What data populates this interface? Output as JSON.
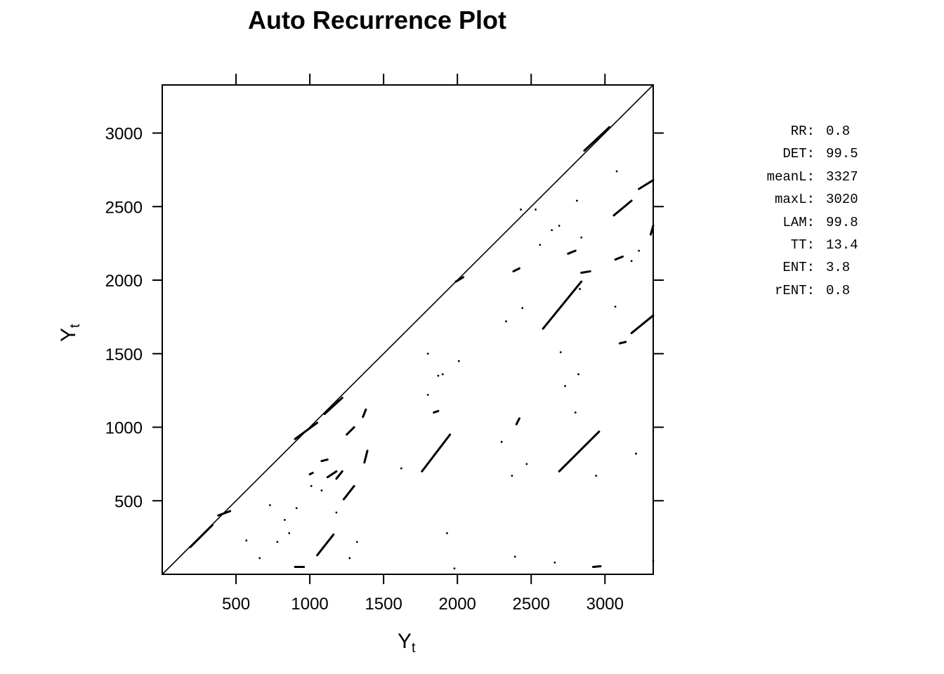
{
  "chart_data": {
    "type": "scatter",
    "title": "Auto Recurrence Plot",
    "xlabel": {
      "main": "Y",
      "sub": "t"
    },
    "ylabel": {
      "main": "Y",
      "sub": "t"
    },
    "xlim": [
      0,
      3327
    ],
    "ylim": [
      0,
      3327
    ],
    "xticks": [
      500,
      1000,
      1500,
      2000,
      2500,
      3000
    ],
    "yticks": [
      500,
      1000,
      1500,
      2000,
      2500,
      3000
    ],
    "grid": false,
    "line_of_identity": {
      "from": [
        0,
        0
      ],
      "to": [
        3327,
        3327
      ]
    },
    "recurrence_segments": [
      {
        "x": [
          190,
          340
        ],
        "y": [
          185,
          335
        ]
      },
      {
        "x": [
          380,
          460
        ],
        "y": [
          400,
          430
        ]
      },
      {
        "x": [
          900,
          1050
        ],
        "y": [
          920,
          1030
        ]
      },
      {
        "x": [
          1100,
          1220
        ],
        "y": [
          1090,
          1200
        ]
      },
      {
        "x": [
          1990,
          2040
        ],
        "y": [
          1990,
          2020
        ]
      },
      {
        "x": [
          2860,
          3030
        ],
        "y": [
          2880,
          3040
        ]
      },
      {
        "x": [
          1760,
          1950
        ],
        "y": [
          700,
          950
        ]
      },
      {
        "x": [
          2690,
          2960
        ],
        "y": [
          700,
          970
        ]
      },
      {
        "x": [
          2580,
          2840
        ],
        "y": [
          1670,
          1990
        ]
      },
      {
        "x": [
          2840,
          2900
        ],
        "y": [
          2050,
          2060
        ]
      },
      {
        "x": [
          3180,
          3327
        ],
        "y": [
          1640,
          1760
        ]
      },
      {
        "x": [
          3100,
          3140
        ],
        "y": [
          1570,
          1580
        ]
      },
      {
        "x": [
          3230,
          3327
        ],
        "y": [
          2620,
          2680
        ]
      },
      {
        "x": [
          3060,
          3180
        ],
        "y": [
          2440,
          2540
        ]
      },
      {
        "x": [
          3310,
          3327
        ],
        "y": [
          2310,
          2370
        ]
      },
      {
        "x": [
          1050,
          1160
        ],
        "y": [
          130,
          270
        ]
      },
      {
        "x": [
          1180,
          1220
        ],
        "y": [
          650,
          700
        ]
      },
      {
        "x": [
          1230,
          1300
        ],
        "y": [
          510,
          600
        ]
      },
      {
        "x": [
          1120,
          1180
        ],
        "y": [
          660,
          700
        ]
      },
      {
        "x": [
          1080,
          1120
        ],
        "y": [
          770,
          780
        ]
      },
      {
        "x": [
          1360,
          1380
        ],
        "y": [
          1070,
          1120
        ]
      },
      {
        "x": [
          1370,
          1390
        ],
        "y": [
          760,
          840
        ]
      },
      {
        "x": [
          1250,
          1300
        ],
        "y": [
          950,
          1000
        ]
      },
      {
        "x": [
          900,
          960
        ],
        "y": [
          50,
          50
        ]
      },
      {
        "x": [
          2400,
          2420
        ],
        "y": [
          1020,
          1060
        ]
      },
      {
        "x": [
          2380,
          2420
        ],
        "y": [
          2060,
          2080
        ]
      },
      {
        "x": [
          2920,
          2970
        ],
        "y": [
          50,
          55
        ]
      },
      {
        "x": [
          1840,
          1870
        ],
        "y": [
          1100,
          1110
        ]
      },
      {
        "x": [
          1000,
          1020
        ],
        "y": [
          680,
          690
        ]
      },
      {
        "x": [
          2750,
          2800
        ],
        "y": [
          2180,
          2200
        ]
      },
      {
        "x": [
          3070,
          3120
        ],
        "y": [
          2140,
          2160
        ]
      }
    ],
    "recurrence_points": [
      [
        570,
        230
      ],
      [
        660,
        110
      ],
      [
        780,
        220
      ],
      [
        860,
        280
      ],
      [
        830,
        370
      ],
      [
        910,
        450
      ],
      [
        730,
        470
      ],
      [
        1180,
        420
      ],
      [
        1270,
        110
      ],
      [
        1320,
        220
      ],
      [
        1620,
        720
      ],
      [
        1800,
        1220
      ],
      [
        1870,
        1350
      ],
      [
        1900,
        1360
      ],
      [
        2010,
        1450
      ],
      [
        1800,
        1500
      ],
      [
        1930,
        280
      ],
      [
        1980,
        40
      ],
      [
        2330,
        1720
      ],
      [
        2300,
        900
      ],
      [
        2370,
        670
      ],
      [
        2440,
        1810
      ],
      [
        2470,
        750
      ],
      [
        2560,
        2240
      ],
      [
        2640,
        2340
      ],
      [
        2690,
        2370
      ],
      [
        2840,
        2290
      ],
      [
        2810,
        2540
      ],
      [
        2770,
        2190
      ],
      [
        2700,
        1510
      ],
      [
        2730,
        1280
      ],
      [
        2800,
        1100
      ],
      [
        2820,
        1360
      ],
      [
        2940,
        670
      ],
      [
        3180,
        2130
      ],
      [
        3230,
        2200
      ],
      [
        3210,
        820
      ],
      [
        3070,
        1820
      ],
      [
        3080,
        2740
      ],
      [
        2660,
        80
      ],
      [
        2390,
        120
      ],
      [
        2830,
        1940
      ],
      [
        3327,
        90
      ],
      [
        2530,
        2480
      ],
      [
        2430,
        2480
      ],
      [
        1080,
        570
      ],
      [
        1010,
        600
      ],
      [
        1190,
        1180
      ]
    ]
  },
  "stats": [
    {
      "name": "RR:",
      "value": "0.8"
    },
    {
      "name": "DET:",
      "value": "99.5"
    },
    {
      "name": "meanL:",
      "value": "3327"
    },
    {
      "name": "maxL:",
      "value": "3020"
    },
    {
      "name": "LAM:",
      "value": "99.8"
    },
    {
      "name": "TT:",
      "value": "13.4"
    },
    {
      "name": "ENT:",
      "value": "3.8"
    },
    {
      "name": "rENT:",
      "value": "0.8"
    }
  ]
}
